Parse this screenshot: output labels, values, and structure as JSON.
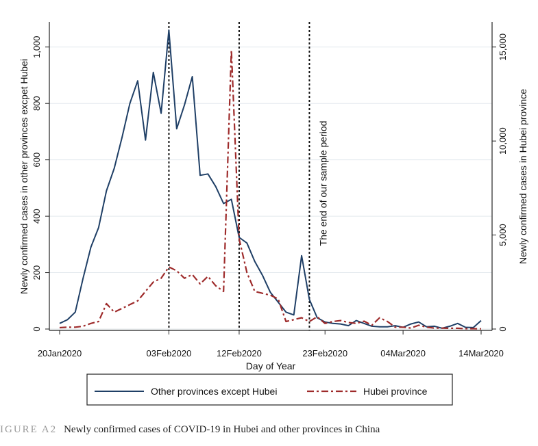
{
  "chart_data": {
    "type": "line",
    "xlabel": "Day of Year",
    "ylabel_left": "Newly confirmed cases in other provinces excpet Hubei",
    "ylabel_right": "Newly confirmed cases in Hubei province",
    "x_tick_labels": [
      "20Jan2020",
      "03Feb2020",
      "12Feb2020",
      "23Feb2020",
      "04Mar2020",
      "14Mar2020"
    ],
    "x_ticks_day": [
      0,
      14,
      23,
      34,
      44,
      54
    ],
    "xlim": [
      0,
      54
    ],
    "y_left_ticks": [
      0,
      200,
      400,
      600,
      800,
      1000
    ],
    "y_left_tick_labels": [
      "0",
      "200",
      "400",
      "600",
      "800",
      "1,000"
    ],
    "ylim_left": [
      0,
      1060
    ],
    "y_right_ticks": [
      0,
      5000,
      10000,
      15000
    ],
    "y_right_tick_labels": [
      "0",
      "5,000",
      "10,000",
      "15,000"
    ],
    "ylim_right": [
      0,
      15900
    ],
    "vlines_day": [
      14,
      23,
      32
    ],
    "annotation": "The end of our sample period",
    "grid": true,
    "series": [
      {
        "name": "Other provinces except Hubei",
        "axis": "left",
        "color": "#1f3f66",
        "style": "solid",
        "x": [
          0,
          1,
          2,
          3,
          4,
          5,
          6,
          7,
          8,
          9,
          10,
          11,
          12,
          13,
          14,
          15,
          16,
          17,
          18,
          19,
          20,
          21,
          22,
          23,
          24,
          25,
          26,
          27,
          28,
          29,
          30,
          31,
          32,
          33,
          34,
          35,
          36,
          37,
          38,
          39,
          40,
          41,
          42,
          43,
          44,
          45,
          46,
          47,
          48,
          49,
          50,
          51,
          52,
          53,
          54
        ],
        "values": [
          20,
          33,
          60,
          180,
          290,
          360,
          490,
          570,
          680,
          800,
          880,
          670,
          910,
          765,
          1060,
          710,
          795,
          895,
          545,
          550,
          505,
          445,
          460,
          325,
          305,
          240,
          190,
          130,
          95,
          60,
          50,
          260,
          105,
          40,
          25,
          20,
          18,
          12,
          30,
          20,
          10,
          8,
          8,
          12,
          6,
          18,
          25,
          8,
          10,
          3,
          10,
          20,
          6,
          5,
          30
        ]
      },
      {
        "name": "Hubei province",
        "axis": "right",
        "color": "#9e2b2b",
        "style": "dashdot",
        "x": [
          0,
          1,
          2,
          3,
          4,
          5,
          6,
          7,
          8,
          9,
          10,
          11,
          12,
          13,
          14,
          15,
          16,
          17,
          18,
          19,
          20,
          21,
          22,
          23,
          24,
          25,
          26,
          27,
          28,
          29,
          30,
          31,
          32,
          33,
          34,
          35,
          36,
          37,
          38,
          39,
          40,
          41,
          42,
          43,
          44,
          45,
          46,
          47,
          48,
          49,
          50,
          51,
          52,
          53,
          54
        ],
        "values": [
          72,
          100,
          100,
          150,
          300,
          400,
          1350,
          900,
          1100,
          1300,
          1500,
          2000,
          2500,
          2700,
          3300,
          3100,
          2700,
          2900,
          2400,
          2800,
          2300,
          2000,
          14840,
          4800,
          3000,
          2000,
          1900,
          1800,
          1600,
          400,
          500,
          600,
          400,
          650,
          300,
          400,
          450,
          350,
          300,
          420,
          200,
          600,
          400,
          100,
          100,
          50,
          200,
          100,
          50,
          50,
          40,
          40,
          20,
          20,
          10
        ]
      }
    ]
  },
  "legend": {
    "items": [
      "Other provinces except Hubei",
      "Hubei province"
    ]
  },
  "caption": {
    "label": "IGURE A2",
    "text": "Newly confirmed cases of COVID-19 in Hubei and other provinces in China"
  }
}
